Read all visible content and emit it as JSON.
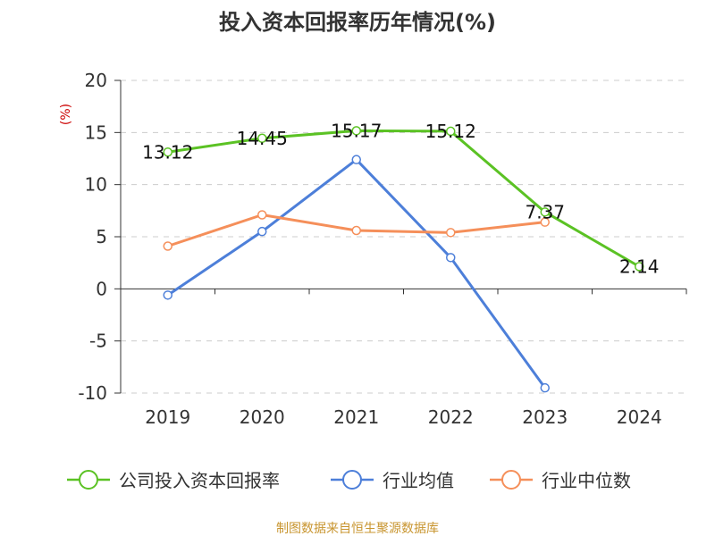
{
  "chart_data": {
    "type": "line",
    "title": "投入资本回报率历年情况(%)",
    "ylabel": "(%)",
    "categories": [
      "2019",
      "2020",
      "2021",
      "2022",
      "2023",
      "2024"
    ],
    "ylim": [
      -10,
      20
    ],
    "yticks": [
      "20",
      "15",
      "10",
      "5",
      "0",
      "-5",
      "-10"
    ],
    "grid": true,
    "legend_position": "bottom",
    "series": [
      {
        "name": "公司投入资本回报率",
        "color": "#5bc224",
        "values": [
          13.12,
          14.45,
          15.17,
          15.12,
          7.37,
          2.14
        ],
        "labels": [
          "13.12",
          "14.45",
          "15.17",
          "15.12",
          "7.37",
          "2.14"
        ]
      },
      {
        "name": "行业均值",
        "color": "#4d7fd9",
        "values": [
          -0.6,
          5.5,
          12.4,
          3.0,
          -9.5,
          null
        ]
      },
      {
        "name": "行业中位数",
        "color": "#f58f5a",
        "values": [
          4.1,
          7.1,
          5.6,
          5.4,
          6.4,
          null
        ]
      }
    ]
  },
  "footer": "制图数据来自恒生聚源数据库"
}
